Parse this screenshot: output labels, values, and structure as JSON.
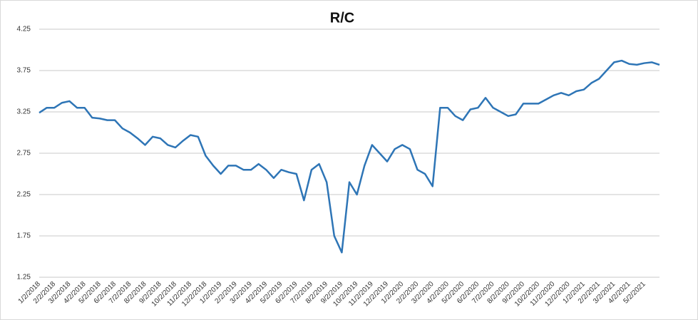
{
  "chart_data": {
    "type": "line",
    "title": "R/C",
    "categories": [
      "1/2/2018",
      null,
      "2/2/2018",
      null,
      "3/2/2018",
      null,
      "4/2/2018",
      null,
      "5/2/2018",
      null,
      "6/2/2018",
      null,
      "7/2/2018",
      null,
      "8/2/2018",
      null,
      "9/2/2018",
      null,
      "10/2/2018",
      null,
      "11/2/2018",
      null,
      "12/2/2018",
      null,
      "1/2/2019",
      null,
      "2/2/2019",
      null,
      "3/2/2019",
      null,
      "4/2/2019",
      null,
      "5/2/2019",
      null,
      "6/2/2019",
      null,
      "7/2/2019",
      null,
      "8/2/2019",
      null,
      "9/2/2019",
      null,
      "10/2/2019",
      null,
      "11/2/2019",
      null,
      "12/2/2019",
      null,
      "1/2/2020",
      null,
      "2/2/2020",
      null,
      "3/2/2020",
      null,
      "4/2/2020",
      null,
      "5/2/2020",
      null,
      "6/2/2020",
      null,
      "7/2/2020",
      null,
      "8/2/2020",
      null,
      "9/2/2020",
      null,
      "10/2/2020",
      null,
      "11/2/2020",
      null,
      "12/2/2020",
      null,
      "1/2/2021",
      null,
      "2/2/2021",
      null,
      "3/2/2021",
      null,
      "4/2/2021",
      null,
      "5/2/2021",
      null,
      null
    ],
    "series": [
      {
        "color": "#2e75b6",
        "values": [
          3.24,
          3.3,
          3.3,
          3.36,
          3.38,
          3.3,
          3.3,
          3.18,
          3.17,
          3.15,
          3.15,
          3.05,
          3.0,
          2.93,
          2.85,
          2.95,
          2.93,
          2.85,
          2.82,
          2.9,
          2.97,
          2.95,
          2.72,
          2.6,
          2.5,
          2.6,
          2.6,
          2.55,
          2.55,
          2.62,
          2.55,
          2.45,
          2.55,
          2.52,
          2.5,
          2.18,
          2.55,
          2.62,
          2.4,
          1.75,
          1.55,
          2.4,
          2.25,
          2.6,
          2.85,
          2.75,
          2.65,
          2.8,
          2.85,
          2.8,
          2.55,
          2.5,
          2.35,
          3.3,
          3.3,
          3.2,
          3.15,
          3.28,
          3.3,
          3.42,
          3.3,
          3.25,
          3.2,
          3.22,
          3.35,
          3.35,
          3.35,
          3.4,
          3.45,
          3.48,
          3.45,
          3.5,
          3.52,
          3.6,
          3.65,
          3.75,
          3.85,
          3.87,
          3.83,
          3.82,
          3.84,
          3.85,
          3.82
        ]
      }
    ],
    "ylim": [
      1.25,
      4.25
    ],
    "yticks": [
      1.25,
      1.75,
      2.25,
      2.75,
      3.25,
      3.75,
      4.25
    ],
    "grid": true
  }
}
